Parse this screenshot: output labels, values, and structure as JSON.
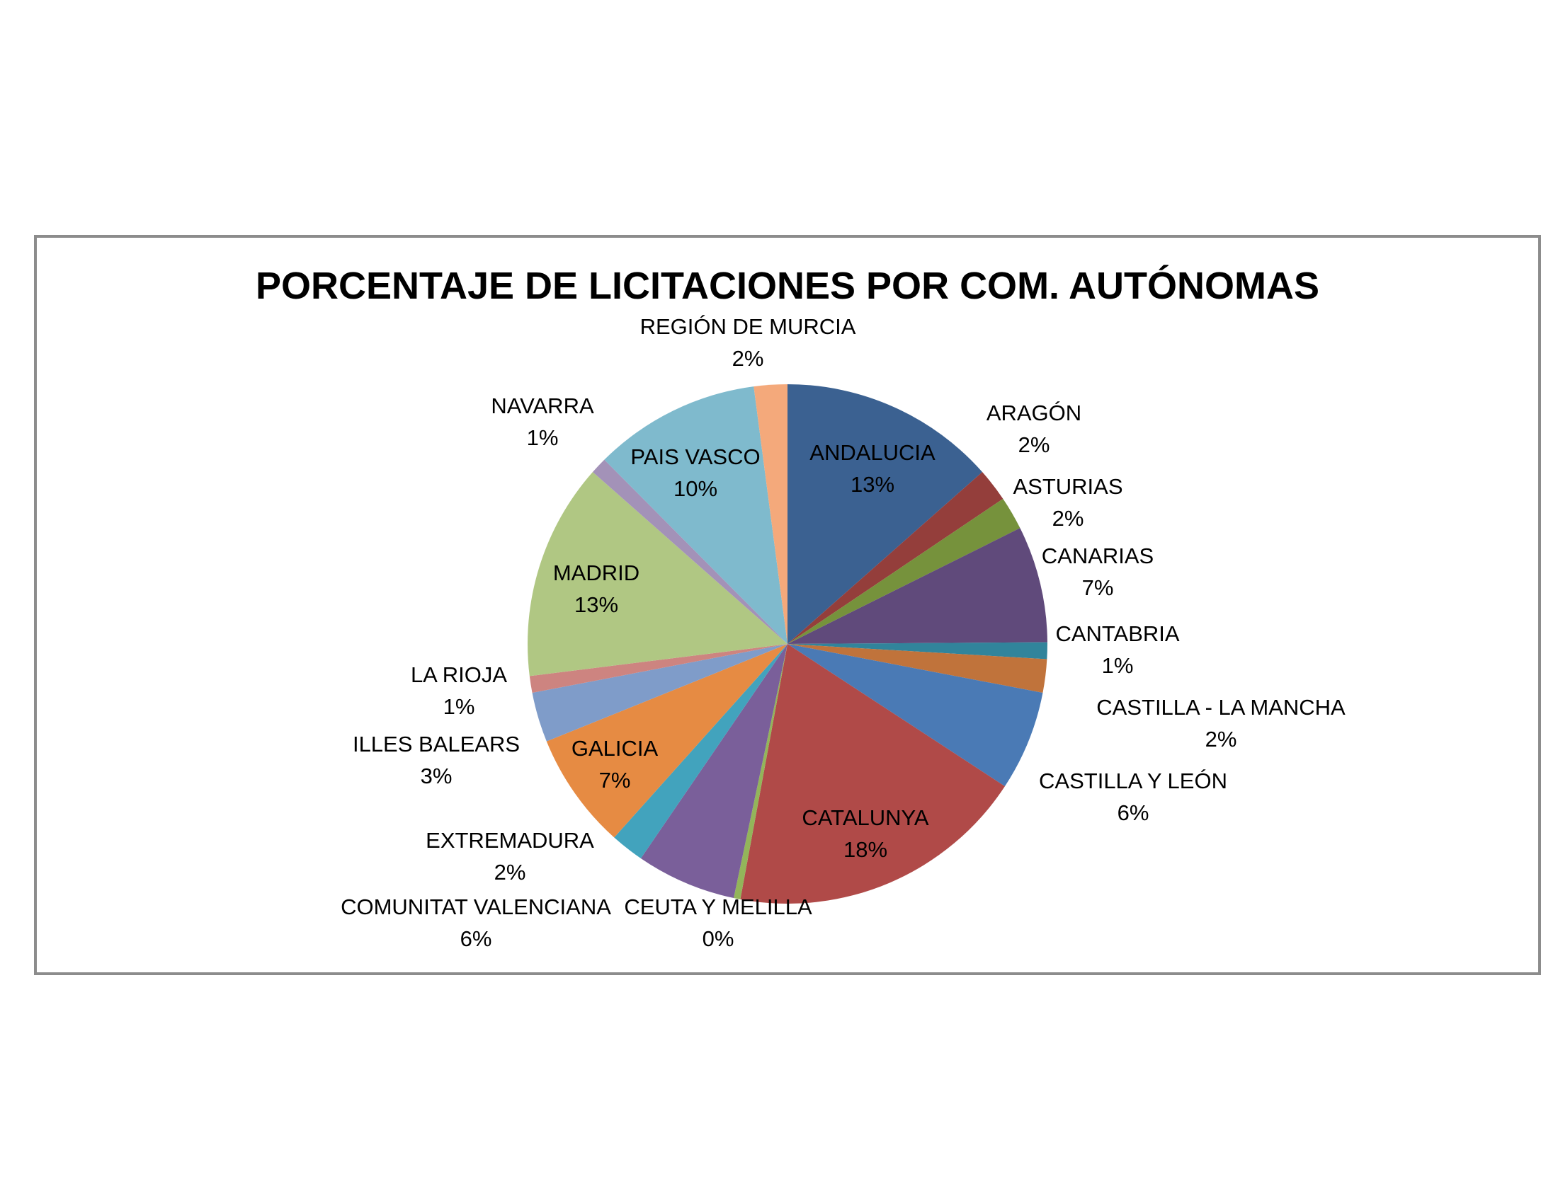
{
  "chart_data": {
    "type": "pie",
    "title": "PORCENTAJE DE LICITACIONES POR COM. AUTÓNOMAS",
    "slices": [
      {
        "label": "ANDALUCIA",
        "value": 13,
        "value_text": "13%",
        "color": "#3b6191"
      },
      {
        "label": "ARAGÓN",
        "value": 2,
        "value_text": "2%",
        "color": "#943e3b"
      },
      {
        "label": "ASTURIAS",
        "value": 2,
        "value_text": "2%",
        "color": "#76923c"
      },
      {
        "label": "CANARIAS",
        "value": 7,
        "value_text": "7%",
        "color": "#604a7b"
      },
      {
        "label": "CANTABRIA",
        "value": 1,
        "value_text": "1%",
        "color": "#31849b"
      },
      {
        "label": "CASTILLA - LA MANCHA",
        "value": 2,
        "value_text": "2%",
        "color": "#c0733b"
      },
      {
        "label": "CASTILLA Y LEÓN",
        "value": 6,
        "value_text": "6%",
        "color": "#4a7ab5"
      },
      {
        "label": "CATALUNYA",
        "value": 18,
        "value_text": "18%",
        "color": "#b04a48"
      },
      {
        "label": "CEUTA Y MELILLA",
        "value": 0.4,
        "value_text": "0%",
        "color": "#93b55a"
      },
      {
        "label": "COMUNITAT VALENCIANA",
        "value": 6,
        "value_text": "6%",
        "color": "#7a5f9a"
      },
      {
        "label": "EXTREMADURA",
        "value": 2,
        "value_text": "2%",
        "color": "#42a3bd"
      },
      {
        "label": "GALICIA",
        "value": 7,
        "value_text": "7%",
        "color": "#e68b43"
      },
      {
        "label": "ILLES BALEARS",
        "value": 3,
        "value_text": "3%",
        "color": "#7f9cc9"
      },
      {
        "label": "LA RIOJA",
        "value": 1,
        "value_text": "1%",
        "color": "#cd8480"
      },
      {
        "label": "MADRID",
        "value": 13,
        "value_text": "13%",
        "color": "#b0c783"
      },
      {
        "label": "NAVARRA",
        "value": 1,
        "value_text": "1%",
        "color": "#a392b8"
      },
      {
        "label": "PAIS VASCO",
        "value": 10,
        "value_text": "10%",
        "color": "#7fbacd"
      },
      {
        "label": "REGIÓN DE MURCIA",
        "value": 2,
        "value_text": "2%",
        "color": "#f4a97b"
      }
    ],
    "start_angle": "12 o'clock",
    "direction": "clockwise",
    "legend": "none"
  }
}
